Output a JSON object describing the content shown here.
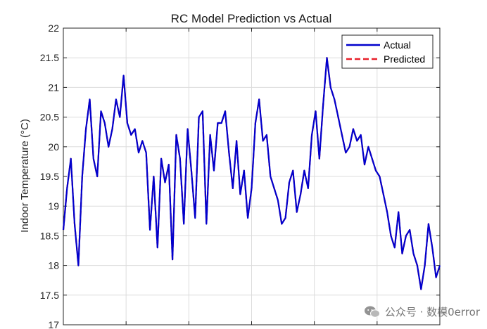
{
  "chart_data": {
    "type": "line",
    "title": "RC Model Prediction vs Actual",
    "xlabel": "",
    "ylabel": "Indoor Temperature (°C)",
    "ylim": [
      17,
      22
    ],
    "yticks": [
      17,
      17.5,
      18,
      18.5,
      19,
      19.5,
      20,
      20.5,
      21,
      21.5,
      22
    ],
    "ytick_labels": [
      "17",
      "17.5",
      "18",
      "18.5",
      "19",
      "19.5",
      "20",
      "20.5",
      "21",
      "21.5",
      "22"
    ],
    "xlim": [
      0,
      300
    ],
    "xtick_positions": [
      50,
      100,
      150,
      200,
      250
    ],
    "grid": true,
    "legend_location": "top-right",
    "series": [
      {
        "name": "Actual",
        "color": "#0000cd",
        "style": "solid",
        "x": [
          0,
          3,
          6,
          9,
          12,
          15,
          18,
          21,
          24,
          27,
          30,
          33,
          36,
          39,
          42,
          45,
          48,
          51,
          54,
          57,
          60,
          63,
          66,
          69,
          72,
          75,
          78,
          81,
          84,
          87,
          90,
          93,
          96,
          99,
          102,
          105,
          108,
          111,
          114,
          117,
          120,
          123,
          126,
          129,
          132,
          135,
          138,
          141,
          144,
          147,
          150,
          153,
          156,
          159,
          162,
          165,
          168,
          171,
          174,
          177,
          180,
          183,
          186,
          189,
          192,
          195,
          198,
          201,
          204,
          207,
          210,
          213,
          216,
          219,
          222,
          225,
          228,
          231,
          234,
          237,
          240,
          243,
          246,
          249,
          252,
          255,
          258,
          261,
          264,
          267,
          270,
          273,
          276,
          279,
          282,
          285,
          288,
          291,
          294,
          297,
          300
        ],
        "values": [
          18.6,
          19.3,
          19.8,
          18.7,
          18.0,
          19.5,
          20.3,
          20.8,
          19.8,
          19.5,
          20.6,
          20.4,
          20.0,
          20.3,
          20.8,
          20.5,
          21.2,
          20.4,
          20.2,
          20.3,
          19.9,
          20.1,
          19.9,
          18.6,
          19.5,
          18.3,
          19.8,
          19.4,
          19.7,
          18.1,
          20.2,
          19.8,
          18.7,
          20.3,
          19.6,
          18.8,
          20.5,
          20.6,
          18.7,
          20.2,
          19.6,
          20.4,
          20.4,
          20.6,
          19.9,
          19.3,
          20.1,
          19.2,
          19.6,
          18.8,
          19.3,
          20.4,
          20.8,
          20.1,
          20.2,
          19.5,
          19.3,
          19.1,
          18.7,
          18.8,
          19.4,
          19.6,
          18.9,
          19.2,
          19.6,
          19.3,
          20.2,
          20.6,
          19.8,
          20.7,
          21.5,
          21.0,
          20.8,
          20.5,
          20.2,
          19.9,
          20.0,
          20.3,
          20.1,
          20.2,
          19.7,
          20.0,
          19.8,
          19.6,
          19.5,
          19.2,
          18.9,
          18.5,
          18.3,
          18.9,
          18.2,
          18.5,
          18.6,
          18.2,
          18.0,
          17.6,
          18.0,
          18.7,
          18.3,
          17.8,
          18.0
        ]
      },
      {
        "name": "Predicted",
        "color": "#e8202a",
        "style": "dashed",
        "x": [
          0,
          3,
          6,
          9,
          12,
          15,
          18,
          21,
          24,
          27,
          30,
          33,
          36,
          39,
          42,
          45,
          48,
          51,
          54,
          57,
          60,
          63,
          66,
          69,
          72,
          75,
          78,
          81,
          84,
          87,
          90,
          93,
          96,
          99,
          102,
          105,
          108,
          111,
          114,
          117,
          120,
          123,
          126,
          129,
          132,
          135,
          138,
          141,
          144,
          147,
          150,
          153,
          156,
          159,
          162,
          165,
          168,
          171,
          174,
          177,
          180,
          183,
          186,
          189,
          192,
          195,
          198,
          201,
          204,
          207,
          210,
          213,
          216,
          219,
          222,
          225,
          228,
          231,
          234,
          237,
          240,
          243,
          246,
          249,
          252,
          255,
          258,
          261,
          264,
          267,
          270,
          273,
          276,
          279,
          282,
          285,
          288,
          291,
          294,
          297,
          300
        ],
        "values": [
          18.6,
          19.3,
          19.8,
          18.7,
          18.0,
          19.5,
          20.3,
          20.8,
          19.8,
          19.5,
          20.6,
          20.4,
          20.0,
          20.3,
          20.8,
          20.5,
          21.2,
          20.4,
          20.2,
          20.3,
          19.9,
          20.1,
          19.9,
          18.6,
          19.5,
          18.3,
          19.8,
          19.4,
          19.7,
          18.1,
          20.2,
          19.8,
          18.7,
          20.3,
          19.6,
          18.8,
          20.5,
          20.6,
          18.7,
          20.2,
          19.6,
          20.4,
          20.4,
          20.6,
          19.9,
          19.3,
          20.1,
          19.2,
          19.6,
          18.8,
          19.3,
          20.4,
          20.8,
          20.1,
          20.2,
          19.5,
          19.3,
          19.1,
          18.7,
          18.8,
          19.4,
          19.6,
          18.9,
          19.2,
          19.6,
          19.3,
          20.2,
          20.6,
          19.8,
          20.7,
          21.5,
          21.0,
          20.8,
          20.5,
          20.2,
          19.9,
          20.0,
          20.3,
          20.1,
          20.2,
          19.7,
          20.0,
          19.8,
          19.6,
          19.5,
          19.2,
          18.9,
          18.5,
          18.3,
          18.9,
          18.2,
          18.5,
          18.6,
          18.2,
          18.0,
          17.6,
          18.0,
          18.7,
          18.3,
          17.8,
          18.0
        ]
      }
    ]
  },
  "watermark": {
    "text": "公众号 · 数模0error",
    "icon": "wechat-icon"
  }
}
